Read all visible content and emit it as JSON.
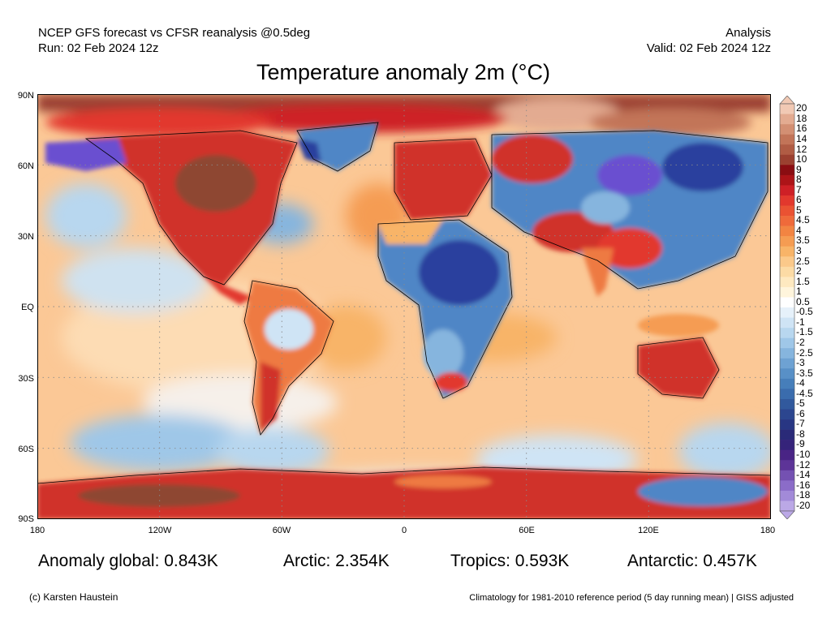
{
  "header": {
    "left_line1": "NCEP GFS forecast vs CFSR reanalysis @0.5deg",
    "left_line2": "Run: 02 Feb 2024 12z",
    "right_line1": "Analysis",
    "right_line2": "Valid: 02 Feb 2024 12z"
  },
  "title": "Temperature anomaly 2m (°C)",
  "map": {
    "lat_labels": [
      "90N",
      "60N",
      "30N",
      "EQ",
      "30S",
      "60S",
      "90S"
    ],
    "lon_labels": [
      "180",
      "120W",
      "60W",
      "0",
      "60E",
      "120E",
      "180"
    ],
    "grid_lines": "dotted",
    "colors": {
      "ocean_warm": "#fbc896",
      "ocean_neutral": "#f6f0ea",
      "cold_light": "#9cc7e8",
      "cold_mid": "#4f86c6",
      "cold_deep": "#2c3f9e",
      "cold_extreme": "#6a4fd0",
      "warm_mid": "#ee7a42",
      "warm_strong": "#d0302a",
      "warm_extreme": "#8e4732",
      "arctic_extreme": "#d9b8a6"
    }
  },
  "colorbar": {
    "labels": [
      "20",
      "18",
      "16",
      "14",
      "12",
      "10",
      "9",
      "8",
      "7",
      "6",
      "5",
      "4.5",
      "4",
      "3.5",
      "3",
      "2.5",
      "2",
      "1.5",
      "1",
      "0.5",
      "-0.5",
      "-1",
      "-1.5",
      "-2",
      "-2.5",
      "-3",
      "-3.5",
      "-4",
      "-4.5",
      "-5",
      "-6",
      "-7",
      "-8",
      "-9",
      "-10",
      "-12",
      "-14",
      "-16",
      "-18",
      "-20"
    ],
    "colors": [
      "#f1c9b4",
      "#e3ab91",
      "#d38f73",
      "#c27458",
      "#b05c44",
      "#9b4030",
      "#8a0d12",
      "#ad1418",
      "#ce2026",
      "#e2382d",
      "#ea5232",
      "#ef6a3a",
      "#f28442",
      "#f59c52",
      "#f8b468",
      "#fbc98a",
      "#fcdba5",
      "#fee9c0",
      "#fff5dc",
      "#ffffff",
      "#e6f1fa",
      "#cfe4f5",
      "#b8d7ef",
      "#9fc7e8",
      "#86b5de",
      "#6ea2d3",
      "#5890c7",
      "#467eba",
      "#3a6cad",
      "#31599d",
      "#2c468f",
      "#283683",
      "#2a2a78",
      "#35237a",
      "#492485",
      "#5d3498",
      "#7451b2",
      "#8b6cc8",
      "#a28ad8",
      "#bba8e6"
    ]
  },
  "stats": {
    "global": "Anomaly global: 0.843K",
    "arctic": "Arctic: 2.354K",
    "tropics": "Tropics: 0.593K",
    "antarctic": "Antarctic: 0.457K"
  },
  "footer": {
    "left": "(c) Karsten Haustein",
    "right": "Climatology for 1981-2010 reference period (5 day running mean) | GISS adjusted"
  }
}
